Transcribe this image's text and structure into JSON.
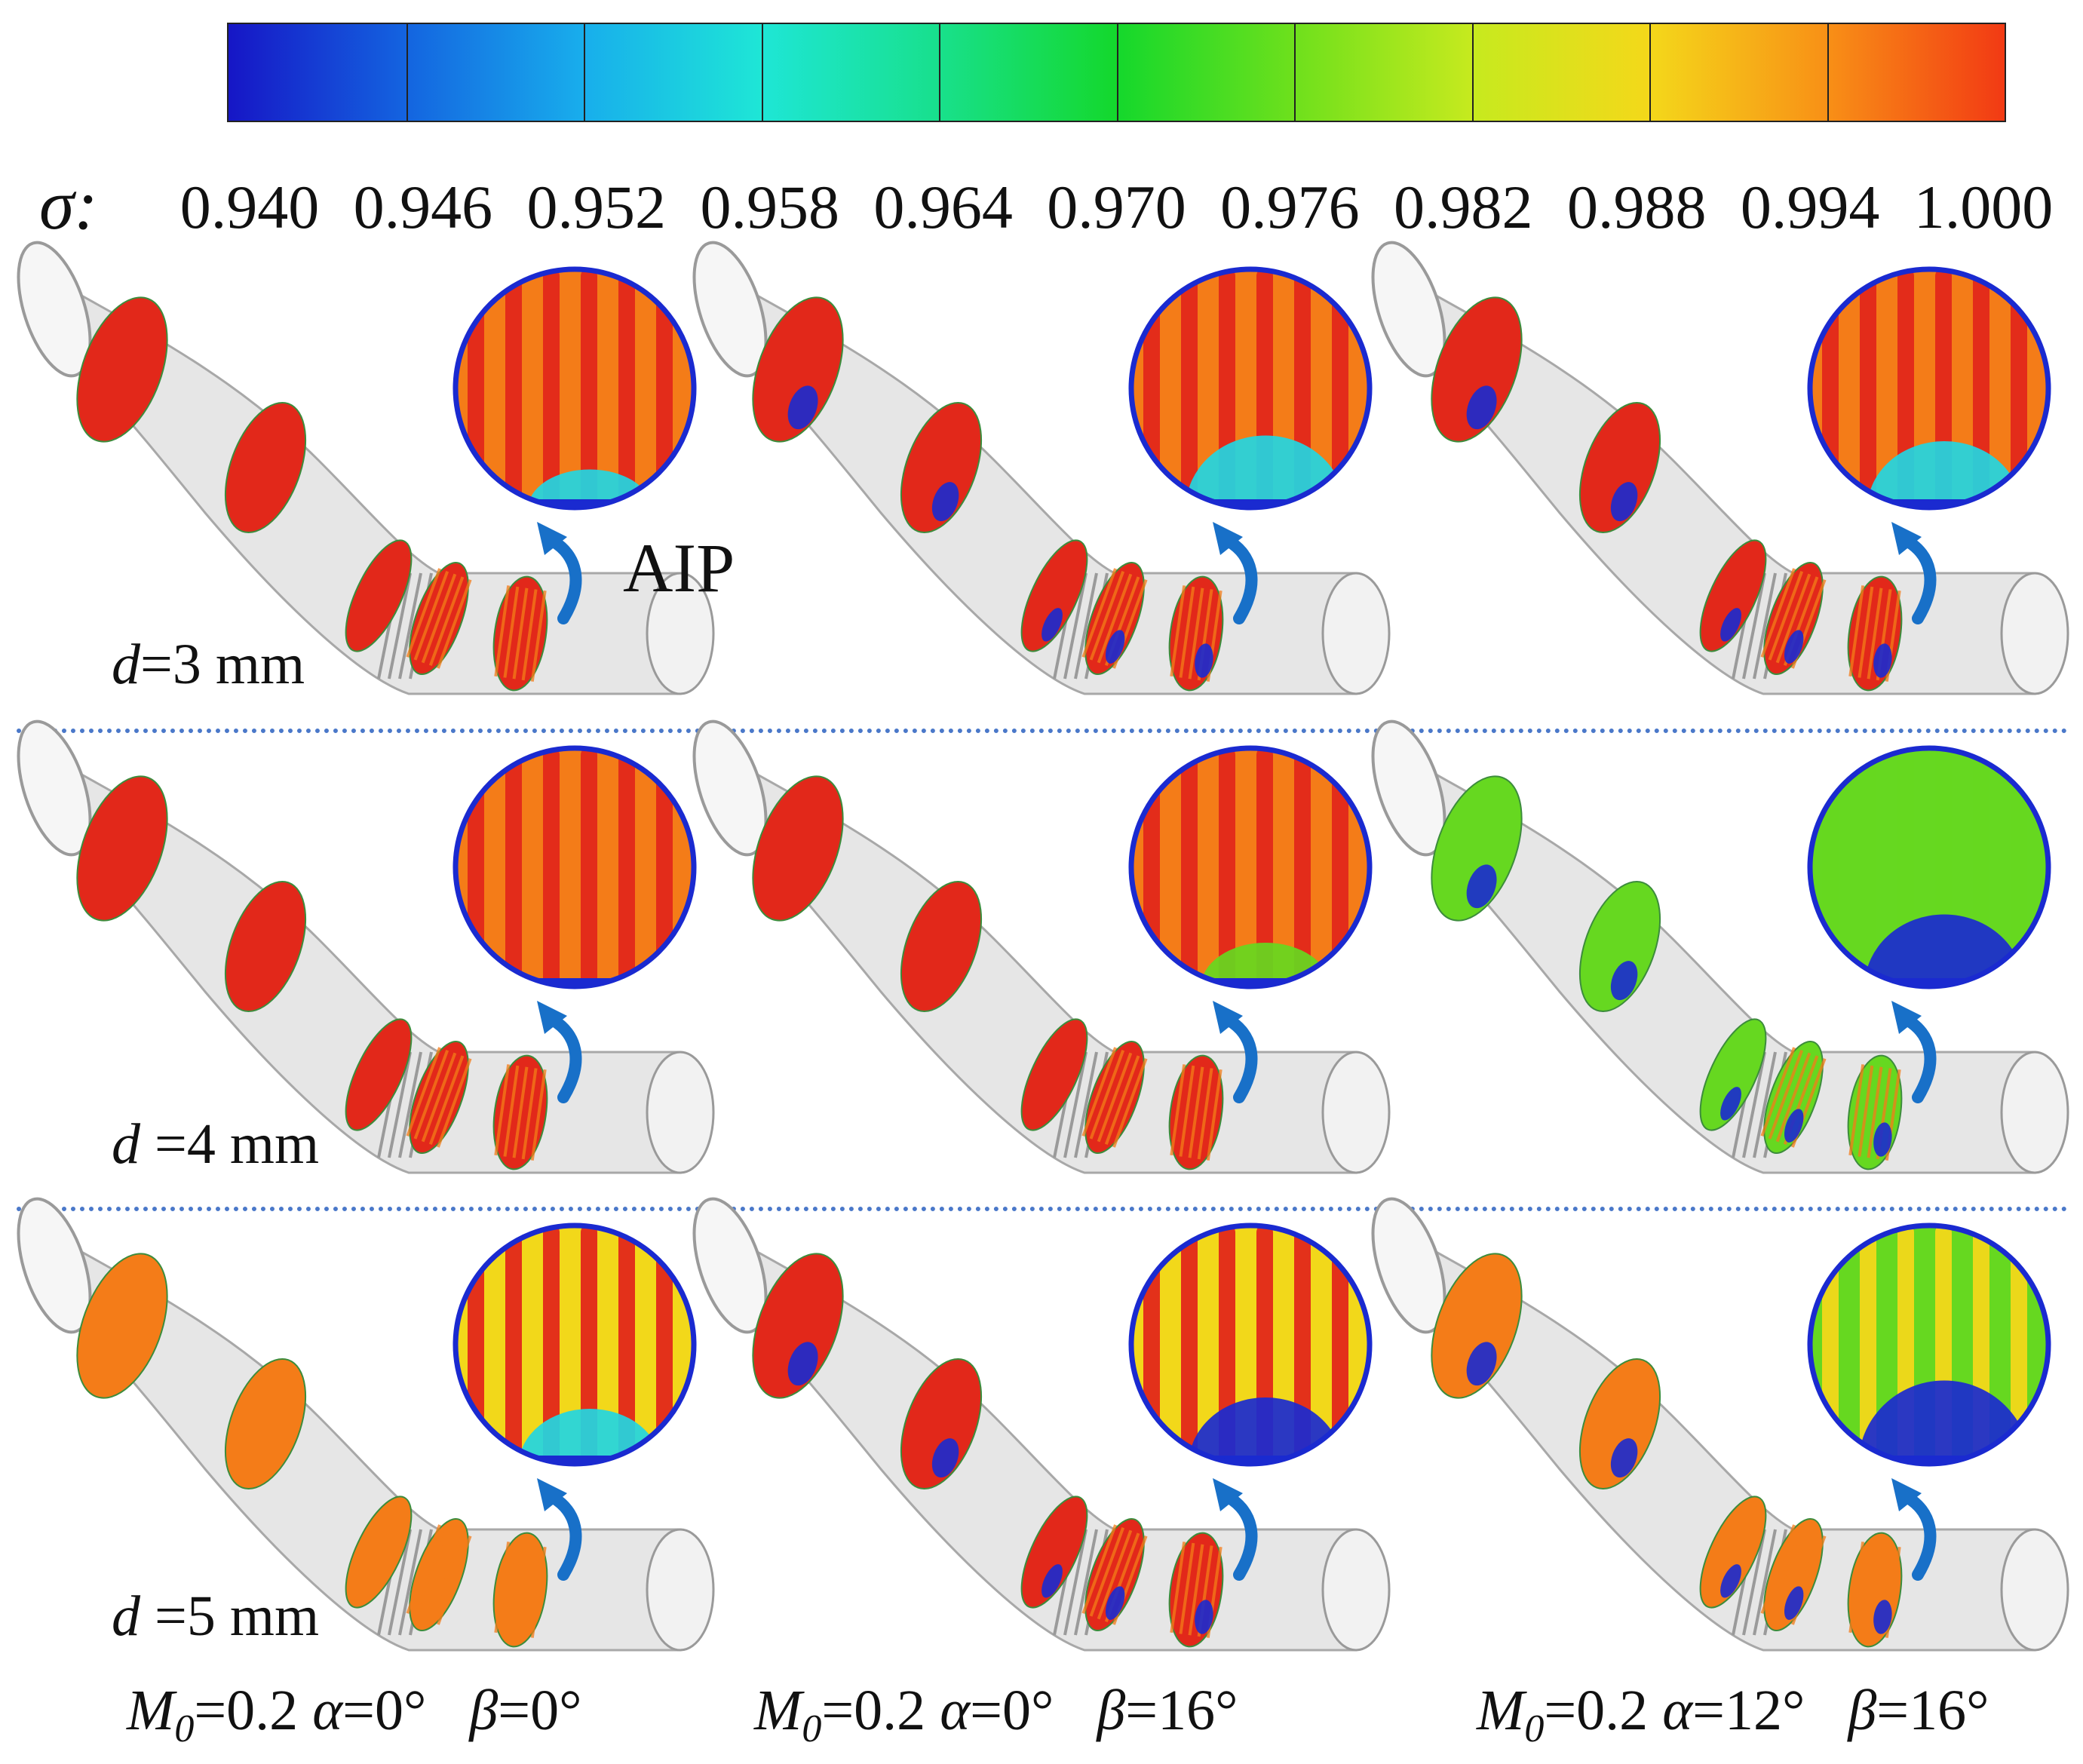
{
  "legend": {
    "symbol": "σ",
    "colon": ":",
    "ticks": [
      "0.940",
      "0.946",
      "0.952",
      "0.958",
      "0.964",
      "0.970",
      "0.976",
      "0.982",
      "0.988",
      "0.994",
      "1.000"
    ],
    "colors": [
      "#1616c6",
      "#1464e0",
      "#18aeec",
      "#1ee6d6",
      "#18e08c",
      "#14d82c",
      "#6ee01c",
      "#c6ea1e",
      "#f4d81a",
      "#f89016",
      "#f23a14"
    ]
  },
  "annotations": {
    "aip": "AIP"
  },
  "rows": [
    {
      "d_var": "d",
      "d_text": "=3 mm"
    },
    {
      "d_var": "d",
      "d_text": " =4 mm"
    },
    {
      "d_var": "d",
      "d_text": " =5 mm"
    }
  ],
  "conditions": [
    {
      "m_var": "M",
      "m_sub": "0",
      "m_val": "=0.2 ",
      "a_var": "α",
      "a_val": "=0°",
      "b_var": "β",
      "b_val": "=0°"
    },
    {
      "m_var": "M",
      "m_sub": "0",
      "m_val": "=0.2 ",
      "a_var": "α",
      "a_val": "=0°",
      "b_var": "β",
      "b_val": "=16°"
    },
    {
      "m_var": "M",
      "m_sub": "0",
      "m_val": "=0.2 ",
      "a_var": "α",
      "a_val": "=12°",
      "b_var": "β",
      "b_val": "=16°"
    }
  ],
  "field_colors": {
    "red": "#e2281a",
    "orange": "#f47c18",
    "yellow": "#f2d81a",
    "green": "#66d820",
    "cyan": "#22d6e2",
    "blue": "#1a2ad0",
    "duct": "#e6e6e6"
  },
  "panels": [
    {
      "row": 0,
      "col": 0,
      "aip_base": "orange",
      "aip_stripes": "red",
      "aip_low": "cyan",
      "aip_low_level": 0.15,
      "slice_main": "red",
      "slice_low": "none"
    },
    {
      "row": 0,
      "col": 1,
      "aip_base": "orange",
      "aip_stripes": "red",
      "aip_low": "cyan",
      "aip_low_level": 0.45,
      "slice_main": "red",
      "slice_low": "blue"
    },
    {
      "row": 0,
      "col": 2,
      "aip_base": "orange",
      "aip_stripes": "red",
      "aip_low": "cyan",
      "aip_low_level": 0.4,
      "slice_main": "red",
      "slice_low": "blue"
    },
    {
      "row": 1,
      "col": 0,
      "aip_base": "orange",
      "aip_stripes": "red",
      "aip_low": "none",
      "aip_low_level": 0.0,
      "slice_main": "red",
      "slice_low": "none"
    },
    {
      "row": 1,
      "col": 1,
      "aip_base": "orange",
      "aip_stripes": "red",
      "aip_low": "green",
      "aip_low_level": 0.2,
      "slice_main": "red",
      "slice_low": "none"
    },
    {
      "row": 1,
      "col": 2,
      "aip_base": "green",
      "aip_stripes": "green",
      "aip_low": "blue",
      "aip_low_level": 0.45,
      "slice_main": "green",
      "slice_low": "blue"
    },
    {
      "row": 2,
      "col": 0,
      "aip_base": "yellow",
      "aip_stripes": "red",
      "aip_low": "cyan",
      "aip_low_level": 0.3,
      "slice_main": "orange",
      "slice_low": "none"
    },
    {
      "row": 2,
      "col": 1,
      "aip_base": "yellow",
      "aip_stripes": "red",
      "aip_low": "blue",
      "aip_low_level": 0.4,
      "slice_main": "red",
      "slice_low": "blue"
    },
    {
      "row": 2,
      "col": 2,
      "aip_base": "green",
      "aip_stripes": "yellow",
      "aip_low": "blue",
      "aip_low_level": 0.55,
      "slice_main": "orange",
      "slice_low": "blue"
    }
  ]
}
